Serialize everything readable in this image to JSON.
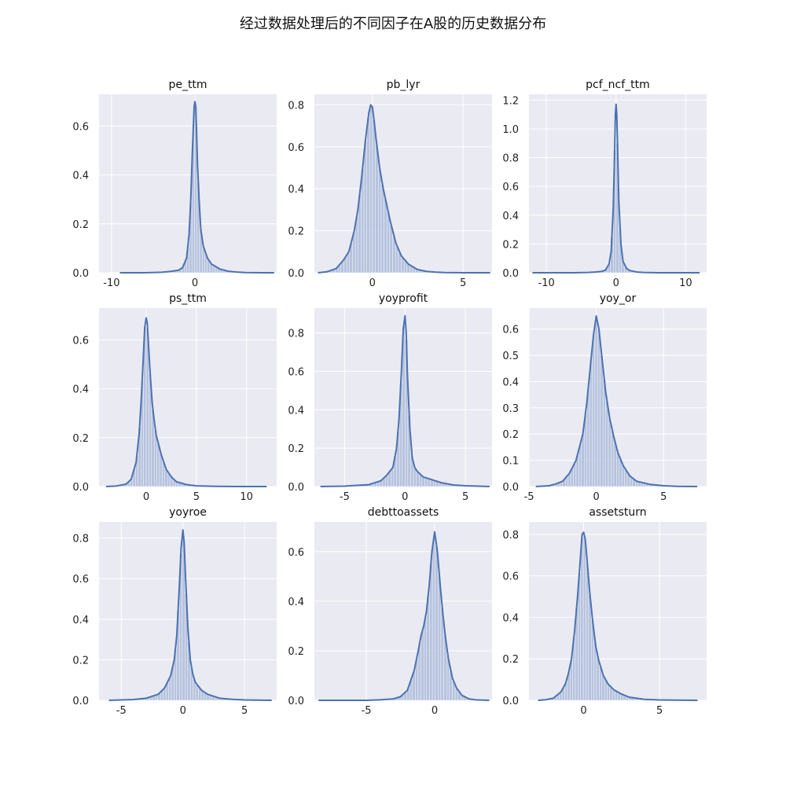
{
  "figure": {
    "title": "经过数据处理后的不同因子在A股的历史数据分布"
  },
  "chart_data": [
    {
      "type": "area",
      "title": "pe_ttm",
      "xlim": [
        -11.5,
        9.8
      ],
      "ylim": [
        0,
        0.73
      ],
      "xticks": [
        -10,
        0
      ],
      "yticks": [
        0,
        0.2,
        0.4,
        0.6
      ],
      "x": [
        -9,
        -6,
        -4,
        -3,
        -2,
        -1.5,
        -1,
        -0.7,
        -0.5,
        -0.3,
        -0.1,
        0,
        0.1,
        0.2,
        0.3,
        0.5,
        0.7,
        1,
        1.5,
        2,
        3,
        4,
        5,
        6,
        8,
        9.5
      ],
      "y": [
        0,
        0,
        0.002,
        0.005,
        0.01,
        0.02,
        0.06,
        0.16,
        0.3,
        0.5,
        0.68,
        0.7,
        0.68,
        0.58,
        0.45,
        0.3,
        0.18,
        0.11,
        0.06,
        0.035,
        0.015,
        0.006,
        0.003,
        0.001,
        0,
        0
      ]
    },
    {
      "type": "area",
      "title": "pb_lyr",
      "xlim": [
        -3.2,
        6.6
      ],
      "ylim": [
        0,
        0.85
      ],
      "xticks": [
        0,
        5
      ],
      "yticks": [
        0,
        0.2,
        0.4,
        0.6,
        0.8
      ],
      "x": [
        -3,
        -2.5,
        -2,
        -1.6,
        -1.3,
        -1,
        -0.8,
        -0.6,
        -0.4,
        -0.2,
        -0.1,
        0,
        0.1,
        0.2,
        0.4,
        0.6,
        0.8,
        1,
        1.3,
        1.6,
        2,
        2.5,
        3,
        3.5,
        4,
        5,
        6.5
      ],
      "y": [
        0,
        0.005,
        0.02,
        0.06,
        0.1,
        0.2,
        0.3,
        0.45,
        0.62,
        0.76,
        0.8,
        0.79,
        0.72,
        0.64,
        0.5,
        0.4,
        0.32,
        0.24,
        0.14,
        0.08,
        0.04,
        0.015,
        0.006,
        0.003,
        0.001,
        0,
        0
      ]
    },
    {
      "type": "area",
      "title": "pcf_ncf_ttm",
      "xlim": [
        -12.5,
        13
      ],
      "ylim": [
        0,
        1.24
      ],
      "xticks": [
        -10,
        0,
        10
      ],
      "yticks": [
        0,
        0.2,
        0.4,
        0.6,
        0.8,
        1.0,
        1.2
      ],
      "x": [
        -12,
        -6,
        -4,
        -3,
        -2,
        -1.5,
        -1,
        -0.7,
        -0.4,
        -0.2,
        -0.1,
        0,
        0.1,
        0.2,
        0.4,
        0.7,
        1,
        1.5,
        2,
        3,
        4,
        6,
        12
      ],
      "y": [
        0,
        0,
        0.002,
        0.005,
        0.01,
        0.02,
        0.06,
        0.15,
        0.45,
        0.85,
        1.1,
        1.17,
        1.1,
        0.9,
        0.5,
        0.2,
        0.08,
        0.03,
        0.015,
        0.005,
        0.002,
        0,
        0
      ]
    },
    {
      "type": "area",
      "title": "ps_ttm",
      "xlim": [
        -4.7,
        13
      ],
      "ylim": [
        0,
        0.73
      ],
      "xticks": [
        0,
        5,
        10
      ],
      "yticks": [
        0,
        0.2,
        0.4,
        0.6
      ],
      "x": [
        -4,
        -3,
        -2,
        -1.5,
        -1,
        -0.7,
        -0.5,
        -0.3,
        -0.15,
        0,
        0.1,
        0.2,
        0.4,
        0.6,
        0.8,
        1,
        1.5,
        2,
        2.5,
        3,
        4,
        5,
        7,
        9,
        12
      ],
      "y": [
        0,
        0.002,
        0.01,
        0.03,
        0.1,
        0.22,
        0.35,
        0.52,
        0.65,
        0.69,
        0.67,
        0.6,
        0.46,
        0.34,
        0.27,
        0.21,
        0.13,
        0.07,
        0.04,
        0.02,
        0.008,
        0.003,
        0.001,
        0,
        0
      ]
    },
    {
      "type": "area",
      "title": "yoyprofit",
      "xlim": [
        -7.5,
        7.2
      ],
      "ylim": [
        0,
        0.93
      ],
      "xticks": [
        -5,
        0,
        5
      ],
      "yticks": [
        0,
        0.2,
        0.4,
        0.6,
        0.8
      ],
      "x": [
        -7,
        -5,
        -4,
        -3,
        -2,
        -1.5,
        -1,
        -0.7,
        -0.5,
        -0.3,
        -0.15,
        0,
        0.1,
        0.2,
        0.4,
        0.6,
        0.8,
        1,
        1.5,
        2,
        2.5,
        3,
        4,
        5,
        6,
        7
      ],
      "y": [
        0,
        0.002,
        0.006,
        0.01,
        0.03,
        0.06,
        0.1,
        0.2,
        0.35,
        0.6,
        0.82,
        0.89,
        0.8,
        0.58,
        0.3,
        0.15,
        0.1,
        0.08,
        0.05,
        0.04,
        0.03,
        0.02,
        0.008,
        0.004,
        0.002,
        0
      ]
    },
    {
      "type": "area",
      "title": "yoy_or",
      "xlim": [
        -5,
        8.2
      ],
      "ylim": [
        0,
        0.68
      ],
      "xticks": [
        -5,
        0,
        5
      ],
      "yticks": [
        0,
        0.1,
        0.2,
        0.3,
        0.4,
        0.5,
        0.6
      ],
      "x": [
        -4.5,
        -3.5,
        -3,
        -2.5,
        -2,
        -1.5,
        -1,
        -0.7,
        -0.4,
        -0.2,
        0,
        0.2,
        0.4,
        0.7,
        1,
        1.3,
        1.6,
        2,
        2.5,
        3,
        4,
        5,
        6,
        7.5
      ],
      "y": [
        0,
        0.003,
        0.01,
        0.02,
        0.05,
        0.1,
        0.2,
        0.32,
        0.48,
        0.58,
        0.65,
        0.6,
        0.5,
        0.36,
        0.26,
        0.19,
        0.13,
        0.08,
        0.04,
        0.02,
        0.008,
        0.003,
        0.001,
        0
      ]
    },
    {
      "type": "area",
      "title": "yoyroe",
      "xlim": [
        -6.8,
        7.6
      ],
      "ylim": [
        0,
        0.88
      ],
      "xticks": [
        -5,
        0,
        5
      ],
      "yticks": [
        0,
        0.2,
        0.4,
        0.6,
        0.8
      ],
      "x": [
        -6,
        -5,
        -4,
        -3,
        -2,
        -1.5,
        -1,
        -0.7,
        -0.5,
        -0.3,
        -0.15,
        0,
        0.1,
        0.2,
        0.4,
        0.6,
        0.8,
        1,
        1.5,
        2,
        3,
        4,
        5,
        6,
        7.2
      ],
      "y": [
        0,
        0.002,
        0.004,
        0.01,
        0.03,
        0.06,
        0.12,
        0.2,
        0.32,
        0.55,
        0.75,
        0.84,
        0.78,
        0.62,
        0.36,
        0.2,
        0.13,
        0.09,
        0.05,
        0.03,
        0.01,
        0.005,
        0.002,
        0.001,
        0
      ]
    },
    {
      "type": "area",
      "title": "debttoassets",
      "xlim": [
        -8.8,
        4.2
      ],
      "ylim": [
        0,
        0.72
      ],
      "xticks": [
        -5,
        0
      ],
      "yticks": [
        0,
        0.2,
        0.4,
        0.6
      ],
      "x": [
        -8.5,
        -5,
        -4,
        -3,
        -2.5,
        -2,
        -1.5,
        -1.2,
        -1,
        -0.8,
        -0.6,
        -0.4,
        -0.2,
        0,
        0.2,
        0.4,
        0.6,
        0.8,
        1,
        1.3,
        1.6,
        2,
        2.5,
        3,
        4
      ],
      "y": [
        0,
        0,
        0.002,
        0.006,
        0.015,
        0.04,
        0.12,
        0.2,
        0.26,
        0.3,
        0.36,
        0.46,
        0.6,
        0.68,
        0.6,
        0.47,
        0.35,
        0.25,
        0.17,
        0.09,
        0.05,
        0.02,
        0.006,
        0.002,
        0
      ]
    },
    {
      "type": "area",
      "title": "assetsturn",
      "xlim": [
        -3.6,
        8.1
      ],
      "ylim": [
        0,
        0.86
      ],
      "xticks": [
        0,
        5
      ],
      "yticks": [
        0,
        0.2,
        0.4,
        0.6,
        0.8
      ],
      "x": [
        -3,
        -2.5,
        -2,
        -1.5,
        -1.2,
        -1,
        -0.8,
        -0.6,
        -0.4,
        -0.2,
        -0.1,
        0,
        0.1,
        0.2,
        0.4,
        0.6,
        0.8,
        1,
        1.3,
        1.6,
        2,
        2.5,
        3,
        4,
        5,
        6,
        7.5
      ],
      "y": [
        0,
        0.003,
        0.01,
        0.04,
        0.08,
        0.13,
        0.2,
        0.33,
        0.5,
        0.7,
        0.8,
        0.81,
        0.78,
        0.7,
        0.52,
        0.38,
        0.26,
        0.19,
        0.12,
        0.08,
        0.05,
        0.03,
        0.015,
        0.005,
        0.002,
        0.001,
        0
      ]
    }
  ]
}
